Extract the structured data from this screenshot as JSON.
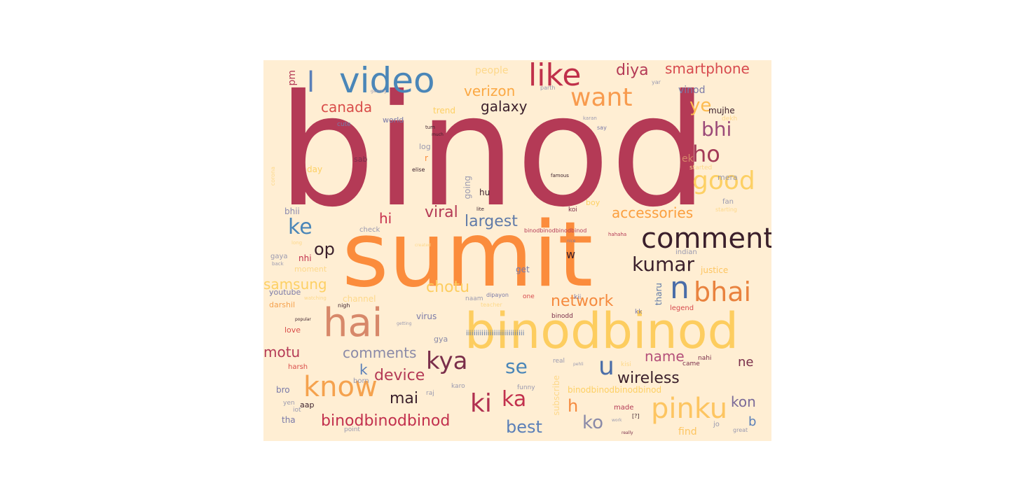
{
  "colors": {
    "background": "#ffeed3",
    "crimson": "#b43a56",
    "orange": "#fb8c3c",
    "gold": "#fdd064",
    "blue": "#4682b4",
    "plum": "#7a2e4a",
    "dark": "#3a1f2b",
    "red": "#d63a47"
  },
  "words": [
    {
      "text": "binod",
      "color": "#b43a56"
    },
    {
      "text": "sumit",
      "color": "#fb8c3c"
    },
    {
      "text": "binodbinod",
      "color": "#fdcd5f"
    },
    {
      "text": "hai",
      "color": "#d7886a"
    },
    {
      "text": "video",
      "color": "#4a86b8"
    },
    {
      "text": "like",
      "color": "#c0304a"
    },
    {
      "text": "comment",
      "color": "#3a1f2b"
    },
    {
      "text": "want",
      "color": "#f89b4e"
    },
    {
      "text": "bhai",
      "color": "#e9823e"
    },
    {
      "text": "n",
      "color": "#4a6da8"
    },
    {
      "text": "pinku",
      "color": "#fdc561"
    },
    {
      "text": "know",
      "color": "#f5a24e"
    },
    {
      "text": "kya",
      "color": "#7a2e4a"
    },
    {
      "text": "ki",
      "color": "#b03050"
    },
    {
      "text": "ka",
      "color": "#c2304d"
    },
    {
      "text": "kumar",
      "color": "#3a1f2b"
    },
    {
      "text": "good",
      "color": "#fdd064"
    },
    {
      "text": "ho",
      "color": "#a33b58"
    },
    {
      "text": "bhi",
      "color": "#9b4a78"
    },
    {
      "text": "ye",
      "color": "#fdbb4f"
    },
    {
      "text": "diya",
      "color": "#b43a56"
    },
    {
      "text": "smartphone",
      "color": "#d74a4e"
    },
    {
      "text": "l",
      "color": "#5a7fb8"
    },
    {
      "text": "verizon",
      "color": "#fba843"
    },
    {
      "text": "canada",
      "color": "#d94d4a"
    },
    {
      "text": "galaxy",
      "color": "#3a1f2b"
    },
    {
      "text": "accessories",
      "color": "#fb9f3f"
    },
    {
      "text": "largest",
      "color": "#5f7aa8"
    },
    {
      "text": "viral",
      "color": "#b43a56"
    },
    {
      "text": "hi",
      "color": "#c7304d"
    },
    {
      "text": "ke",
      "color": "#4a86b8"
    },
    {
      "text": "op",
      "color": "#3a1f2b"
    },
    {
      "text": "samsung",
      "color": "#fdd064"
    },
    {
      "text": "network",
      "color": "#f58a3e"
    },
    {
      "text": "chotu",
      "color": "#fdcd5f"
    },
    {
      "text": "comments",
      "color": "#8a8aa8"
    },
    {
      "text": "name",
      "color": "#b4507a"
    },
    {
      "text": "u",
      "color": "#4a6da8"
    },
    {
      "text": "wireless",
      "color": "#3a1f2b"
    },
    {
      "text": "se",
      "color": "#4a86b8"
    },
    {
      "text": "device",
      "color": "#b43a56"
    },
    {
      "text": "mai",
      "color": "#3a1f2b"
    },
    {
      "text": "motu",
      "color": "#b43a56"
    },
    {
      "text": "binodbinodbinod",
      "color": "#c2304d"
    },
    {
      "text": "best",
      "color": "#5a7fb8"
    },
    {
      "text": "ko",
      "color": "#8a8aa8"
    },
    {
      "text": "h",
      "color": "#f58a3e"
    },
    {
      "text": "kon",
      "color": "#7a6a98"
    },
    {
      "text": "ne",
      "color": "#7a2e4a"
    },
    {
      "text": "b",
      "color": "#5a7fb8"
    },
    {
      "text": "k",
      "color": "#5a7fb8"
    },
    {
      "text": "w",
      "color": "#3a1f2b"
    },
    {
      "text": "people",
      "color": "#fdd88a"
    },
    {
      "text": "pm",
      "color": "#b43a56"
    },
    {
      "text": "vinod",
      "color": "#7a7aa8"
    },
    {
      "text": "mujhe",
      "color": "#3a1f2b"
    },
    {
      "text": "trend",
      "color": "#fdd064"
    },
    {
      "text": "world",
      "color": "#7a7aa8"
    },
    {
      "text": "cute",
      "color": "#7a7aa8"
    },
    {
      "text": "log",
      "color": "#9a9ab0"
    },
    {
      "text": "day",
      "color": "#fdd064"
    },
    {
      "text": "sab",
      "color": "#7a2e4a"
    },
    {
      "text": "r",
      "color": "#fb8c3c"
    },
    {
      "text": "ek",
      "color": "#d7886a"
    },
    {
      "text": "mera",
      "color": "#9a9ab0"
    },
    {
      "text": "fan",
      "color": "#9a9ab0"
    },
    {
      "text": "boy",
      "color": "#fdd064"
    },
    {
      "text": "bhii",
      "color": "#8a8ab0"
    },
    {
      "text": "nhi",
      "color": "#c2304d"
    },
    {
      "text": "gaya",
      "color": "#9a9ab0"
    },
    {
      "text": "moment",
      "color": "#fdd88a"
    },
    {
      "text": "youtube",
      "color": "#7a7aa8"
    },
    {
      "text": "darshil",
      "color": "#f5a24e"
    },
    {
      "text": "love",
      "color": "#d94d4a"
    },
    {
      "text": "check",
      "color": "#9a9ab0"
    },
    {
      "text": "hu",
      "color": "#3a1f2b"
    },
    {
      "text": "going",
      "color": "#9a9ab0"
    },
    {
      "text": "get",
      "color": "#7a7aa8"
    },
    {
      "text": "justice",
      "color": "#fdc561"
    },
    {
      "text": "tharu",
      "color": "#5f7aa8"
    },
    {
      "text": "legend",
      "color": "#d74a4e"
    },
    {
      "text": "virus",
      "color": "#7a7aa8"
    },
    {
      "text": "gya",
      "color": "#8a8aa8"
    },
    {
      "text": "channel",
      "color": "#fdd88a"
    },
    {
      "text": "binodbinodbinodbinod",
      "color": "#fdd064"
    },
    {
      "text": "subscribe",
      "color": "#fdd88a"
    },
    {
      "text": "aap",
      "color": "#3a1f2b"
    },
    {
      "text": "tha",
      "color": "#7a7aa8"
    },
    {
      "text": "bro",
      "color": "#7a7aa8"
    },
    {
      "text": "harsh",
      "color": "#d94d4a"
    },
    {
      "text": "born",
      "color": "#9a9ab0"
    },
    {
      "text": "find",
      "color": "#fdc561"
    },
    {
      "text": "made",
      "color": "#b43a56"
    },
    {
      "text": "jo",
      "color": "#9a9ab0"
    },
    {
      "text": "point",
      "color": "#9a9ab0"
    },
    {
      "text": "iot",
      "color": "#9a9ab0"
    },
    {
      "text": "yen",
      "color": "#9a9ab0"
    },
    {
      "text": "came",
      "color": "#7a2e4a"
    },
    {
      "text": "nahi",
      "color": "#7a2e4a"
    },
    {
      "text": "real",
      "color": "#9a9ab0"
    },
    {
      "text": "funny",
      "color": "#9a9ab0"
    },
    {
      "text": "raj",
      "color": "#9a9ab0"
    },
    {
      "text": "karo",
      "color": "#9a9ab0"
    },
    {
      "text": "kk",
      "color": "#7a7aa8"
    },
    {
      "text": "kii",
      "color": "#7a7aa8"
    },
    {
      "text": "one",
      "color": "#d74a4e"
    },
    {
      "text": "koi",
      "color": "#7a2e4a"
    },
    {
      "text": "indian",
      "color": "#9a9ab0"
    },
    {
      "text": "naam",
      "color": "#9a9ab0"
    },
    {
      "text": "nigh",
      "color": "#3a1f2b"
    },
    {
      "text": "binodd",
      "color": "#7a2e4a"
    },
    {
      "text": "dipayon",
      "color": "#7a7aa8"
    },
    {
      "text": "teacher",
      "color": "#fdd88a"
    },
    {
      "text": "kisi",
      "color": "#fdd88a"
    },
    {
      "text": "hahaha",
      "color": "#b43a56"
    },
    {
      "text": "karan",
      "color": "#9a9ab0"
    },
    {
      "text": "say",
      "color": "#7a7aa8"
    },
    {
      "text": "elise",
      "color": "#3a1f2b"
    },
    {
      "text": "started",
      "color": "#fdd88a"
    },
    {
      "text": "famous",
      "color": "#3a1f2b"
    },
    {
      "text": "corona",
      "color": "#fdd88a"
    },
    {
      "text": "long",
      "color": "#fdd88a"
    },
    {
      "text": "back",
      "color": "#9a9ab0"
    },
    {
      "text": "watching",
      "color": "#fdd88a"
    },
    {
      "text": "getting",
      "color": "#9a9ab0"
    },
    {
      "text": "popular",
      "color": "#3a1f2b"
    },
    {
      "text": "dekh",
      "color": "#fdd88a"
    },
    {
      "text": "yar",
      "color": "#9a9ab0"
    },
    {
      "text": "parth",
      "color": "#9a9ab0"
    },
    {
      "text": "gaming",
      "color": "#9a9ab0"
    },
    {
      "text": "binodbinodbinodbinod",
      "color": "#b43a56"
    },
    {
      "text": "iiiiiiiiiiiiiiiiiiiiiiiiiiiiii",
      "color": "#5f7aa8"
    },
    {
      "text": "starting",
      "color": "#fdd88a"
    },
    {
      "text": "great",
      "color": "#9a9ab0"
    },
    {
      "text": "nice",
      "color": "#7a7aa8"
    },
    {
      "text": "created",
      "color": "#fdd88a"
    },
    {
      "text": "lite",
      "color": "#3a1f2b"
    },
    {
      "text": "[?]",
      "color": "#3a1f2b"
    },
    {
      "text": "really",
      "color": "#7a2e4a"
    },
    {
      "text": "work",
      "color": "#9a9ab0"
    },
    {
      "text": "pehli",
      "color": "#9a9ab0"
    },
    {
      "text": "tum",
      "color": "#3a1f2b"
    },
    {
      "text": "much",
      "color": "#3a1f2b"
    }
  ]
}
